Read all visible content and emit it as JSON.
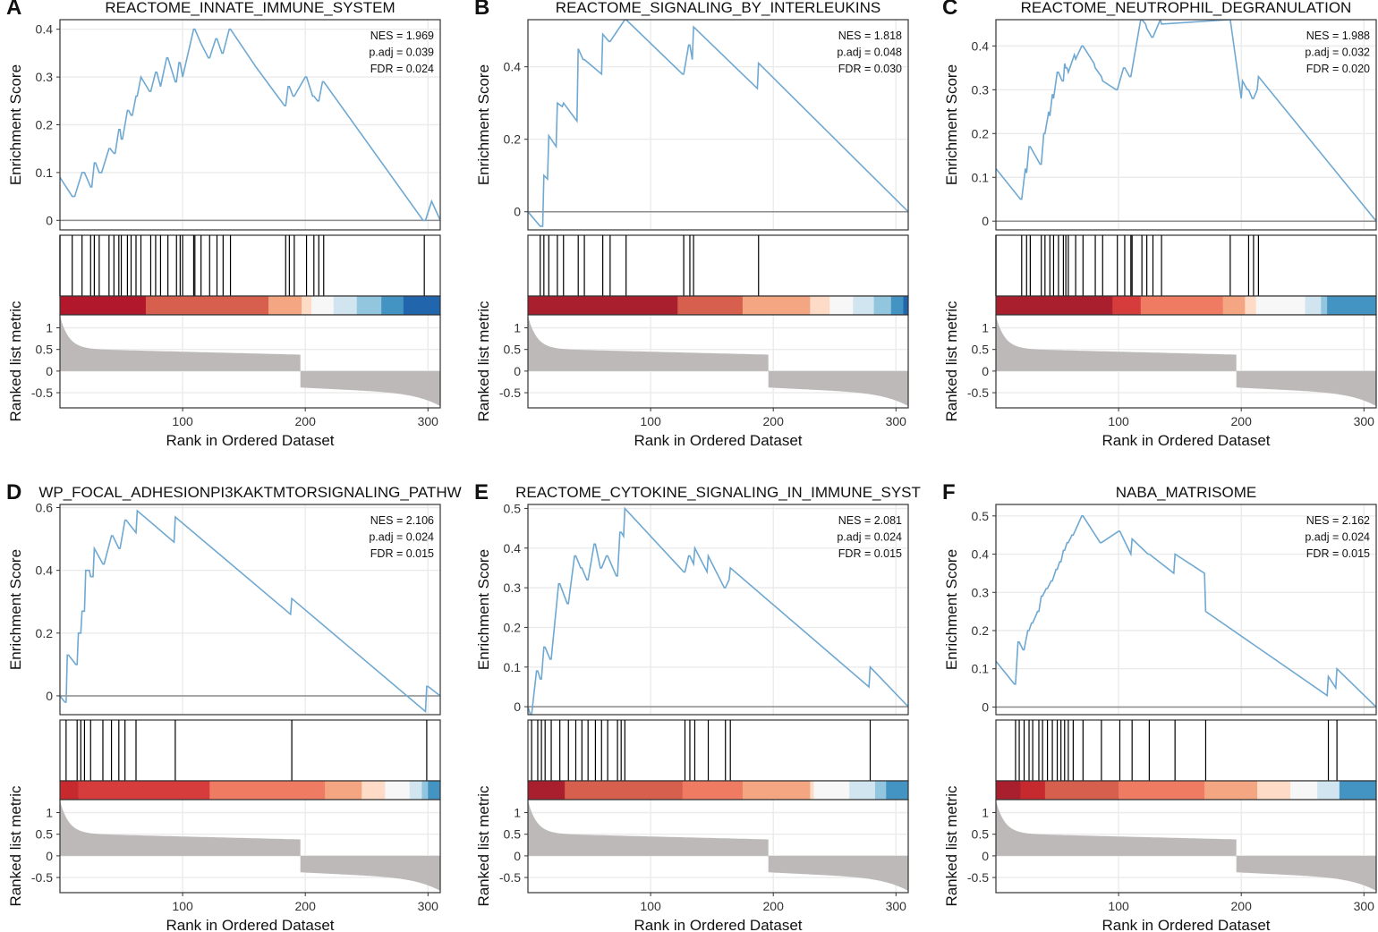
{
  "figure": {
    "xlabel": "Rank in Ordered Dataset"
  },
  "chart_data": [
    {
      "type": "line",
      "panel": "A",
      "title": "REACTOME_INNATE_IMMUNE_SYSTEM",
      "xlabel": "Rank in Ordered Dataset",
      "ylabel": "Enrichment Score",
      "ylabel_metric": "Ranked list metric",
      "x_max": 310,
      "x_ticks": [
        100,
        200,
        300
      ],
      "es_ylim": [
        -0.02,
        0.42
      ],
      "es_ticks": [
        0.0,
        0.1,
        0.2,
        0.3,
        0.4
      ],
      "metric_ylim": [
        -0.85,
        1.3
      ],
      "metric_ticks": [
        1.0,
        0.5,
        0.0,
        -0.5
      ],
      "stats": [
        "NES = 1.969",
        "p.adj = 0.039",
        "FDR = 0.024"
      ],
      "line_color": "#6fa8d1",
      "x": [
        0,
        10,
        12,
        18,
        20,
        25,
        26,
        28,
        29,
        32,
        34,
        40,
        41,
        44,
        45,
        48,
        49,
        50,
        51,
        55,
        56,
        58,
        59,
        62,
        63,
        66,
        73,
        74,
        78,
        79,
        82,
        87,
        88,
        94,
        95,
        97,
        98,
        100,
        109,
        110,
        115,
        121,
        122,
        127,
        128,
        132,
        133,
        138,
        139,
        160,
        183,
        184,
        186,
        187,
        190,
        191,
        200,
        201,
        206,
        207,
        210,
        211,
        214,
        215,
        296,
        297,
        298,
        303,
        310
      ],
      "y": [
        0.09,
        0.05,
        0.05,
        0.1,
        0.1,
        0.07,
        0.07,
        0.12,
        0.12,
        0.1,
        0.1,
        0.15,
        0.15,
        0.14,
        0.14,
        0.19,
        0.19,
        0.17,
        0.17,
        0.23,
        0.23,
        0.22,
        0.22,
        0.26,
        0.26,
        0.3,
        0.27,
        0.27,
        0.31,
        0.31,
        0.28,
        0.34,
        0.34,
        0.29,
        0.29,
        0.33,
        0.33,
        0.3,
        0.4,
        0.4,
        0.37,
        0.34,
        0.34,
        0.38,
        0.38,
        0.35,
        0.35,
        0.4,
        0.4,
        0.32,
        0.24,
        0.24,
        0.28,
        0.28,
        0.26,
        0.26,
        0.3,
        0.3,
        0.26,
        0.26,
        0.25,
        0.25,
        0.29,
        0.29,
        0.0,
        0.0,
        0.0,
        0.04,
        0.0
      ],
      "hits": [
        0,
        10,
        18,
        25,
        28,
        32,
        40,
        44,
        48,
        50,
        55,
        58,
        62,
        66,
        74,
        78,
        82,
        88,
        95,
        98,
        100,
        109,
        110,
        115,
        122,
        128,
        133,
        139,
        184,
        187,
        191,
        201,
        207,
        211,
        215,
        297
      ],
      "heat_colors": [
        "#b2182b",
        "#d6604d",
        "#f4a582",
        "#fddbc7",
        "#f7f7f7",
        "#d1e5f0",
        "#92c5de",
        "#4393c3",
        "#2166ac"
      ],
      "heat_ranks": [
        0,
        70,
        170,
        197,
        205,
        223,
        242,
        262,
        280,
        310
      ],
      "metric_zero_cross": 196,
      "metric_top": 1.28,
      "metric_bottom": -0.82
    },
    {
      "type": "line",
      "panel": "B",
      "title": "REACTOME_SIGNALING_BY_INTERLEUKINS",
      "xlabel": "Rank in Ordered Dataset",
      "ylabel": "Enrichment Score",
      "ylabel_metric": "Ranked list metric",
      "x_max": 310,
      "x_ticks": [
        100,
        200,
        300
      ],
      "es_ylim": [
        -0.05,
        0.53
      ],
      "es_ticks": [
        0.0,
        0.2,
        0.4
      ],
      "metric_ylim": [
        -0.85,
        1.3
      ],
      "metric_ticks": [
        1.0,
        0.5,
        0.0,
        -0.5
      ],
      "stats": [
        "NES = 1.818",
        "p.adj = 0.048",
        "FDR = 0.030"
      ],
      "line_color": "#6fa8d1",
      "x": [
        0,
        10,
        12,
        13,
        16,
        17,
        23,
        24,
        28,
        29,
        40,
        41,
        45,
        46,
        60,
        61,
        66,
        67,
        79,
        80,
        126,
        127,
        131,
        132,
        134,
        135,
        187,
        188,
        310
      ],
      "y": [
        0.0,
        -0.04,
        -0.04,
        0.1,
        0.09,
        0.21,
        0.18,
        0.3,
        0.29,
        0.3,
        0.25,
        0.45,
        0.42,
        0.42,
        0.38,
        0.49,
        0.47,
        0.47,
        0.53,
        0.53,
        0.38,
        0.38,
        0.46,
        0.46,
        0.42,
        0.51,
        0.34,
        0.41,
        0.0
      ],
      "hits": [
        10,
        13,
        17,
        24,
        29,
        41,
        46,
        61,
        67,
        80,
        127,
        132,
        135,
        188
      ],
      "heat_colors": [
        "#a91f2e",
        "#d6604d",
        "#f4a582",
        "#fddbc7",
        "#f7f7f7",
        "#d1e5f0",
        "#92c5de",
        "#4393c3",
        "#2166ac"
      ],
      "heat_ranks": [
        0,
        122,
        175,
        230,
        246,
        265,
        282,
        296,
        306,
        310
      ],
      "metric_zero_cross": 196,
      "metric_top": 1.28,
      "metric_bottom": -0.82
    },
    {
      "type": "line",
      "panel": "C",
      "title": "REACTOME_NEUTROPHIL_DEGRANULATION",
      "xlabel": "Rank in Ordered Dataset",
      "ylabel": "Enrichment Score",
      "ylabel_metric": "Ranked list metric",
      "x_max": 310,
      "x_ticks": [
        100,
        200,
        300
      ],
      "es_ylim": [
        -0.02,
        0.46
      ],
      "es_ticks": [
        0.0,
        0.1,
        0.2,
        0.3,
        0.4
      ],
      "metric_ylim": [
        -0.85,
        1.3
      ],
      "metric_ticks": [
        1.0,
        0.5,
        0.0,
        -0.5
      ],
      "stats": [
        "NES = 1.988",
        "p.adj = 0.032",
        "FDR = 0.020"
      ],
      "line_color": "#6fa8d1",
      "x": [
        0,
        20,
        21,
        24,
        25,
        27,
        28,
        36,
        37,
        39,
        40,
        43,
        44,
        46,
        47,
        50,
        51,
        54,
        55,
        56,
        57,
        58,
        59,
        64,
        65,
        70,
        71,
        80,
        81,
        86,
        87,
        98,
        99,
        104,
        105,
        109,
        110,
        118,
        119,
        122,
        123,
        127,
        128,
        134,
        135,
        190,
        191,
        200,
        201,
        205,
        206,
        209,
        210,
        213,
        214,
        310
      ],
      "y": [
        0.12,
        0.05,
        0.05,
        0.12,
        0.11,
        0.17,
        0.17,
        0.13,
        0.13,
        0.2,
        0.2,
        0.25,
        0.24,
        0.29,
        0.28,
        0.34,
        0.34,
        0.32,
        0.32,
        0.36,
        0.35,
        0.35,
        0.34,
        0.38,
        0.37,
        0.4,
        0.4,
        0.36,
        0.35,
        0.33,
        0.32,
        0.3,
        0.3,
        0.35,
        0.35,
        0.33,
        0.33,
        0.46,
        0.46,
        0.45,
        0.44,
        0.42,
        0.42,
        0.46,
        0.45,
        0.46,
        0.46,
        0.28,
        0.32,
        0.3,
        0.3,
        0.28,
        0.28,
        0.3,
        0.33,
        0.0
      ],
      "hits": [
        0,
        21,
        25,
        28,
        37,
        40,
        44,
        47,
        51,
        55,
        57,
        59,
        65,
        71,
        81,
        87,
        99,
        105,
        110,
        111,
        119,
        123,
        128,
        135,
        191,
        206,
        210,
        214
      ],
      "heat_colors": [
        "#a91f2e",
        "#d73c3c",
        "#ef7b63",
        "#f4a582",
        "#fddbc7",
        "#f7f7f7",
        "#d1e5f0",
        "#92c5de",
        "#4393c3"
      ],
      "heat_ranks": [
        0,
        95,
        118,
        185,
        203,
        212,
        252,
        265,
        270,
        310
      ],
      "metric_zero_cross": 196,
      "metric_top": 1.28,
      "metric_bottom": -0.82
    },
    {
      "type": "line",
      "panel": "D",
      "title": "WP_FOCAL_ADHESIONPI3KAKTMTORSIGNALING_PATHW",
      "xlabel": "Rank in Ordered Dataset",
      "ylabel": "Enrichment Score",
      "ylabel_metric": "Ranked list metric",
      "x_max": 310,
      "x_ticks": [
        100,
        200,
        300
      ],
      "es_ylim": [
        -0.06,
        0.61
      ],
      "es_ticks": [
        0.0,
        0.2,
        0.4,
        0.6
      ],
      "metric_ylim": [
        -0.85,
        1.3
      ],
      "metric_ticks": [
        1.0,
        0.5,
        0.0,
        -0.5
      ],
      "stats": [
        "NES = 2.106",
        "p.adj = 0.024",
        "FDR = 0.015"
      ],
      "line_color": "#6fa8d1",
      "x": [
        0,
        4,
        5,
        6,
        7,
        13,
        14,
        15,
        17,
        18,
        20,
        21,
        24,
        25,
        27,
        28,
        35,
        36,
        42,
        43,
        48,
        49,
        53,
        54,
        62,
        63,
        93,
        94,
        188,
        189,
        298,
        299,
        300,
        310
      ],
      "y": [
        0.0,
        -0.02,
        -0.02,
        0.13,
        0.13,
        0.1,
        0.1,
        0.2,
        0.2,
        0.27,
        0.27,
        0.4,
        0.4,
        0.38,
        0.38,
        0.47,
        0.42,
        0.42,
        0.51,
        0.51,
        0.47,
        0.47,
        0.56,
        0.56,
        0.52,
        0.59,
        0.49,
        0.57,
        0.26,
        0.31,
        -0.05,
        0.03,
        0.03,
        0.0
      ],
      "hits": [
        5,
        14,
        17,
        20,
        25,
        35,
        42,
        48,
        53,
        62,
        94,
        189,
        299
      ],
      "heat_colors": [
        "#c62a2f",
        "#d73c3c",
        "#ef7b63",
        "#f4a582",
        "#fddbc7",
        "#f7f7f7",
        "#d1e5f0",
        "#92c5de",
        "#4393c3"
      ],
      "heat_ranks": [
        0,
        15,
        122,
        216,
        246,
        265,
        285,
        295,
        300,
        310
      ],
      "metric_zero_cross": 196,
      "metric_top": 1.28,
      "metric_bottom": -0.82
    },
    {
      "type": "line",
      "panel": "E",
      "title": "REACTOME_CYTOKINE_SIGNALING_IN_IMMUNE_SYST",
      "xlabel": "Rank in Ordered Dataset",
      "ylabel": "Enrichment Score",
      "ylabel_metric": "Ranked list metric",
      "x_max": 310,
      "x_ticks": [
        100,
        200,
        300
      ],
      "es_ylim": [
        -0.02,
        0.51
      ],
      "es_ticks": [
        0.0,
        0.1,
        0.2,
        0.3,
        0.4,
        0.5
      ],
      "metric_ylim": [
        -0.85,
        1.3
      ],
      "metric_ticks": [
        1.0,
        0.5,
        0.0,
        -0.5
      ],
      "stats": [
        "NES = 2.081",
        "p.adj = 0.024",
        "FDR = 0.015"
      ],
      "line_color": "#6fa8d1",
      "x": [
        0,
        2,
        3,
        7,
        8,
        10,
        11,
        13,
        14,
        18,
        19,
        25,
        26,
        32,
        33,
        38,
        39,
        43,
        44,
        48,
        49,
        54,
        55,
        59,
        60,
        64,
        65,
        72,
        73,
        75,
        76,
        78,
        79,
        127,
        128,
        131,
        132,
        135,
        136,
        146,
        147,
        160,
        161,
        164,
        165,
        278,
        279,
        310
      ],
      "y": [
        0.0,
        -0.02,
        -0.02,
        0.09,
        0.09,
        0.07,
        0.07,
        0.15,
        0.15,
        0.12,
        0.12,
        0.31,
        0.31,
        0.26,
        0.26,
        0.38,
        0.38,
        0.35,
        0.35,
        0.32,
        0.32,
        0.41,
        0.41,
        0.35,
        0.35,
        0.38,
        0.38,
        0.33,
        0.33,
        0.44,
        0.44,
        0.43,
        0.5,
        0.34,
        0.34,
        0.38,
        0.38,
        0.36,
        0.4,
        0.34,
        0.38,
        0.3,
        0.3,
        0.32,
        0.35,
        0.05,
        0.1,
        0.0
      ],
      "hits": [
        3,
        8,
        11,
        14,
        19,
        26,
        33,
        39,
        44,
        49,
        55,
        60,
        65,
        73,
        76,
        79,
        128,
        132,
        136,
        147,
        161,
        165,
        279
      ],
      "heat_colors": [
        "#a91f2e",
        "#d6604d",
        "#ef7b63",
        "#f4a582",
        "#fddbc7",
        "#f7f7f7",
        "#d1e5f0",
        "#92c5de",
        "#4393c3"
      ],
      "heat_ranks": [
        0,
        30,
        126,
        175,
        230,
        233,
        262,
        283,
        292,
        310
      ],
      "metric_zero_cross": 196,
      "metric_top": 1.28,
      "metric_bottom": -0.82
    },
    {
      "type": "line",
      "panel": "F",
      "title": "NABA_MATRISOME",
      "xlabel": "Rank in Ordered Dataset",
      "ylabel": "Enrichment Score",
      "ylabel_metric": "Ranked list metric",
      "x_max": 310,
      "x_ticks": [
        100,
        200,
        300
      ],
      "es_ylim": [
        -0.02,
        0.53
      ],
      "es_ticks": [
        0.0,
        0.1,
        0.2,
        0.3,
        0.4,
        0.5
      ],
      "metric_ylim": [
        -0.85,
        1.3
      ],
      "metric_ticks": [
        1.0,
        0.5,
        0.0,
        -0.5
      ],
      "stats": [
        "NES = 2.162",
        "p.adj = 0.024",
        "FDR = 0.015"
      ],
      "line_color": "#6fa8d1",
      "x": [
        0,
        15,
        16,
        18,
        19,
        22,
        23,
        26,
        27,
        29,
        30,
        34,
        35,
        37,
        38,
        41,
        42,
        45,
        46,
        49,
        50,
        52,
        53,
        55,
        56,
        58,
        59,
        62,
        63,
        70,
        71,
        85,
        86,
        100,
        101,
        110,
        111,
        124,
        125,
        145,
        146,
        170,
        171,
        270,
        271,
        277,
        278,
        310
      ],
      "y": [
        0.12,
        0.06,
        0.06,
        0.17,
        0.17,
        0.15,
        0.15,
        0.2,
        0.2,
        0.22,
        0.22,
        0.25,
        0.25,
        0.29,
        0.29,
        0.31,
        0.31,
        0.33,
        0.33,
        0.36,
        0.36,
        0.38,
        0.38,
        0.41,
        0.41,
        0.43,
        0.43,
        0.45,
        0.45,
        0.5,
        0.5,
        0.43,
        0.43,
        0.46,
        0.46,
        0.4,
        0.44,
        0.4,
        0.4,
        0.35,
        0.4,
        0.35,
        0.25,
        0.03,
        0.08,
        0.05,
        0.1,
        0.0
      ],
      "hits": [
        16,
        19,
        23,
        27,
        30,
        35,
        38,
        42,
        46,
        50,
        53,
        56,
        59,
        63,
        71,
        86,
        101,
        111,
        125,
        146,
        171,
        271,
        278
      ],
      "heat_colors": [
        "#a91f2e",
        "#c62a2f",
        "#d6604d",
        "#ef7b63",
        "#f4a582",
        "#fddbc7",
        "#f7f7f7",
        "#d1e5f0",
        "#4393c3"
      ],
      "heat_ranks": [
        0,
        20,
        40,
        100,
        170,
        213,
        240,
        262,
        280,
        310
      ],
      "metric_zero_cross": 196,
      "metric_top": 1.28,
      "metric_bottom": -0.82
    }
  ]
}
